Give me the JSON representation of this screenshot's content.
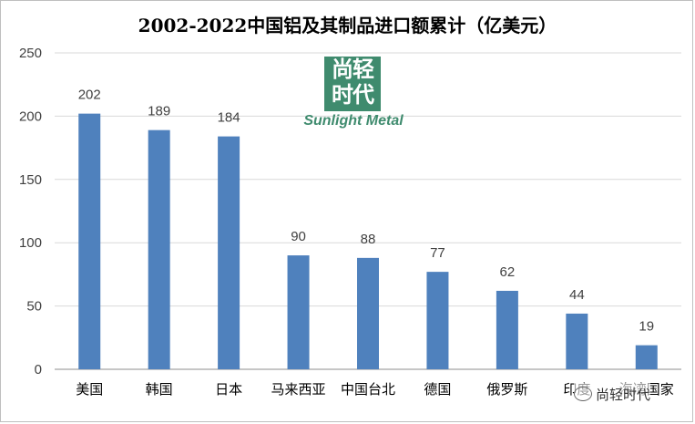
{
  "chart_data": {
    "type": "bar",
    "title": "2002-2022中国铝及其制品进口额累计（亿美元）",
    "categories": [
      "美国",
      "韩国",
      "日本",
      "马来西亚",
      "中国台北",
      "德国",
      "俄罗斯",
      "印度",
      "海湾国家"
    ],
    "values": [
      202,
      189,
      184,
      90,
      88,
      77,
      62,
      44,
      19
    ],
    "ylim": [
      0,
      250
    ],
    "yticks": [
      0,
      50,
      100,
      150,
      200,
      250
    ],
    "grid": true,
    "bar_color": "#4f81bd",
    "grid_color": "#d9d9d9"
  },
  "logo": {
    "mark_line1": "尚轻",
    "mark_line2": "时代",
    "text": "Sunlight Metal"
  },
  "watermark": {
    "text": "尚轻时代"
  }
}
